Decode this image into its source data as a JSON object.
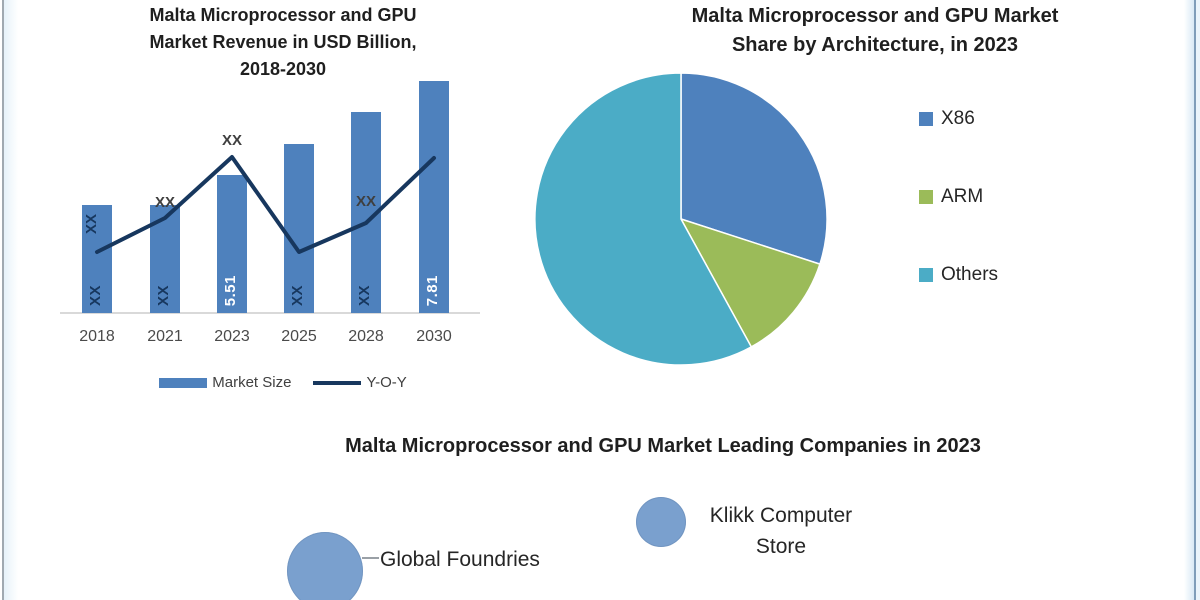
{
  "chart_data": [
    {
      "id": "revenue",
      "type": "bar",
      "subtype": "bar-line-combo",
      "title": "Malta Microprocessor and GPU Market Revenue in USD Billion, 2018-2030",
      "title_lines": [
        "Malta Microprocessor and GPU",
        "Market Revenue in USD Billion,",
        "2018-2030"
      ],
      "categories": [
        "2018",
        "2021",
        "2023",
        "2025",
        "2028",
        "2030"
      ],
      "ylabel": "Revenue in USD Billion",
      "legend_position": "bottom",
      "known_values": {
        "2023": 5.51,
        "2030": 7.81
      },
      "series": [
        {
          "name": "Market Size",
          "type": "bar",
          "color": "#4E81BD",
          "values": [
            null,
            null,
            5.51,
            null,
            null,
            7.81
          ],
          "data_labels": [
            "XX",
            "XX",
            "5.51",
            "XX",
            "XX",
            "7.81"
          ],
          "label_colors": [
            "#17375E",
            "#17375E",
            "#FFFFFF",
            "#17375E",
            "#17375E",
            "#FFFFFF"
          ],
          "heights_rel": [
            0.445,
            0.445,
            0.568,
            0.696,
            0.827,
            0.955
          ]
        },
        {
          "name": "Y-O-Y",
          "type": "line",
          "color": "#17375E",
          "values": [
            null,
            null,
            null,
            null,
            null,
            null
          ],
          "data_labels": [
            "XX",
            "XX",
            "XX",
            "",
            "XX",
            ""
          ],
          "points_rel": [
            0.251,
            0.391,
            0.642,
            0.251,
            0.37,
            0.638
          ]
        }
      ]
    },
    {
      "id": "architecture_share",
      "type": "pie",
      "title": "Malta Microprocessor and GPU Market Share by Architecture, in 2023",
      "title_lines": [
        "Malta Microprocessor and GPU Market",
        "Share by Architecture, in 2023"
      ],
      "labels": [
        "X86",
        "ARM",
        "Others"
      ],
      "values_pct": [
        30,
        12,
        58
      ],
      "colors": [
        "#4E81BD",
        "#9BBB59",
        "#4BACC6"
      ],
      "start_angle_deg": 0,
      "direction": "clockwise",
      "legend_position": "right"
    },
    {
      "id": "leading_companies",
      "type": "bubble",
      "title": "Malta Microprocessor and GPU Market Leading Companies in 2023",
      "bubble_color": "#7AA0CE",
      "items": [
        {
          "label": "Global Foundries",
          "label_lines": [
            "Global Foundries"
          ],
          "size_rel": 1.0
        },
        {
          "label": "Klikk Computer Store",
          "label_lines": [
            "Klikk Computer",
            "Store"
          ],
          "size_rel": 0.65
        }
      ]
    }
  ]
}
